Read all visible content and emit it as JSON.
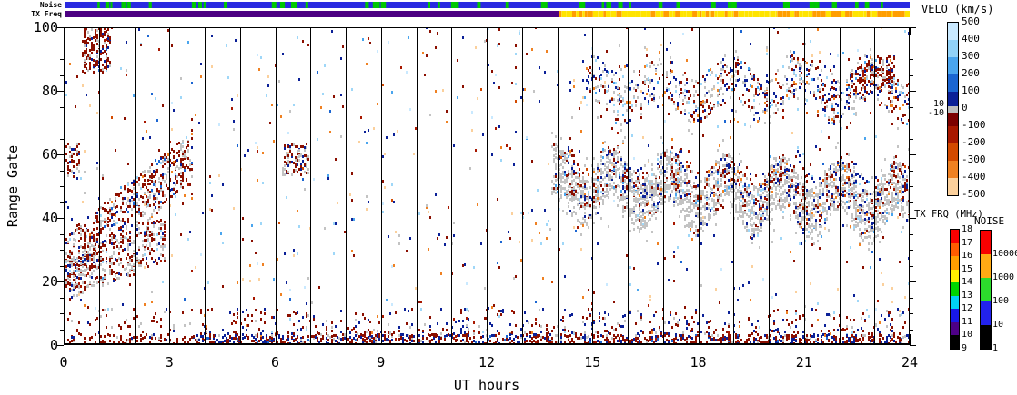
{
  "chart_data": {
    "type": "scatter",
    "description": "SuperDARN radar range-time plot: Doppler velocity vs UT hours and range gate",
    "axes": {
      "xlabel": "UT hours",
      "ylabel": "Range Gate",
      "x_range": [
        0,
        24
      ],
      "y_range": [
        0,
        100
      ],
      "x_major_ticks": [
        0,
        3,
        6,
        9,
        12,
        15,
        18,
        21,
        24
      ],
      "x_minor_step": 1,
      "y_major_ticks": [
        0,
        20,
        40,
        60,
        80,
        100
      ],
      "y_minor_step": 5,
      "hour_gridlines": true
    },
    "strips": {
      "noise": {
        "label": "Noise",
        "bar_color": "#2a2ae0",
        "tick_color": "#00c800",
        "tick_count": 46
      },
      "tx_freq": {
        "label": "TX Freq",
        "solid_color": "#4c0082",
        "transition_hour": 14.05,
        "dash_colors": [
          "#ffe400",
          "#ff9e00"
        ]
      }
    },
    "colorbars": {
      "velo": {
        "title": "VELO (km/s)",
        "right_labels": [
          "500",
          "400",
          "300",
          "200",
          "100",
          "0",
          "-100",
          "-200",
          "-300",
          "-400",
          "-500"
        ],
        "left_labels": [
          "10",
          "-10"
        ],
        "segments": [
          {
            "c": "#c9e9ff",
            "h": 19
          },
          {
            "c": "#91d2f8",
            "h": 19
          },
          {
            "c": "#4aa5ee",
            "h": 19
          },
          {
            "c": "#1b66d2",
            "h": 19
          },
          {
            "c": "#0b2097",
            "h": 15.5
          },
          {
            "c": "#bdbdbd",
            "h": 7
          },
          {
            "c": "#7c0000",
            "h": 15.5
          },
          {
            "c": "#a81800",
            "h": 19
          },
          {
            "c": "#d34a00",
            "h": 19
          },
          {
            "c": "#ef8122",
            "h": 19
          },
          {
            "c": "#fbd09c",
            "h": 19
          }
        ]
      },
      "tx_freq": {
        "title": "TX FRQ (MHz)",
        "labels": [
          "18",
          "17",
          "16",
          "15",
          "14",
          "13",
          "12",
          "11",
          "10",
          "9"
        ],
        "segments": [
          "#f80000",
          "#ff5c00",
          "#ff9e00",
          "#fff000",
          "#00d400",
          "#00d2f4",
          "#1818e8",
          "#4d0086",
          "#000000"
        ]
      },
      "noise": {
        "title": "NOISE",
        "labels": [
          "10000",
          "1000",
          "100",
          "10",
          "1"
        ],
        "segments": [
          "#f80000",
          "#ffaa14",
          "#2cdc2c",
          "#2222ec",
          "#000000"
        ]
      }
    },
    "palette": {
      "paleblue": "#c9e9ff",
      "lightblue": "#9fd7f8",
      "sky": "#4aa5ee",
      "blue": "#1b66d2",
      "navy": "#0b2097",
      "gray": "#c3c3c3",
      "darkred": "#8b0f00",
      "maroon": "#7c0000",
      "brick": "#a81800",
      "orangered": "#d34a00",
      "orange": "#ef8122",
      "peach": "#fbd09c"
    },
    "regions": [
      {
        "name": "background-sparse",
        "t": [
          0,
          24
        ],
        "g": [
          10,
          100
        ],
        "count": 780,
        "colors": {
          "darkred": 20,
          "navy": 18,
          "lightblue": 12,
          "paleblue": 6,
          "sky": 5,
          "blue": 4,
          "orange": 10,
          "peach": 12,
          "gray": 8,
          "brick": 3,
          "orangered": 2
        }
      },
      {
        "name": "bottom-row-dense",
        "t": [
          3.8,
          24
        ],
        "g": [
          0,
          2.5
        ],
        "count": 780,
        "colors": {
          "darkred": 55,
          "navy": 28,
          "gray": 8,
          "blue": 4,
          "brick": 5
        }
      },
      {
        "name": "bottom-band",
        "t": [
          3.8,
          24
        ],
        "g": [
          2.5,
          11
        ],
        "bias": 2.2,
        "count": 620,
        "colors": {
          "darkred": 44,
          "navy": 34,
          "gray": 12,
          "orange": 4,
          "lightblue": 3,
          "brick": 3
        }
      },
      {
        "name": "bottom-left-sparse",
        "t": [
          0,
          3.8
        ],
        "g": [
          0,
          3
        ],
        "count": 90,
        "colors": {
          "darkred": 80,
          "gray": 10,
          "navy": 10
        }
      },
      {
        "name": "low-mid-sparse",
        "t": [
          0,
          3.8
        ],
        "g": [
          3,
          11
        ],
        "count": 55,
        "colors": {
          "darkred": 60,
          "gray": 25,
          "navy": 15
        }
      },
      {
        "name": "ascending-band",
        "t": [
          0,
          3.65
        ],
        "band": {
          "c0": 25,
          "c1": 59,
          "hw": 8.5
        },
        "count": 640,
        "colors": {
          "darkred": 47,
          "gray": 30,
          "navy": 10,
          "brick": 5,
          "blue": 3,
          "orange": 2,
          "lightblue": 3
        }
      },
      {
        "name": "ascending-band-lower",
        "t": [
          0,
          2.9
        ],
        "band": {
          "c0": 20,
          "c1": 33,
          "hw": 7
        },
        "count": 400,
        "colors": {
          "gray": 45,
          "darkred": 40,
          "navy": 8,
          "brick": 4,
          "lightblue": 3
        }
      },
      {
        "name": "top-left-cluster",
        "t": [
          0.55,
          1.35
        ],
        "band": {
          "c0": 92,
          "c1": 93,
          "hw": 7
        },
        "count": 170,
        "colors": {
          "darkred": 70,
          "navy": 11,
          "gray": 13,
          "brick": 3,
          "blue": 3
        }
      },
      {
        "name": "left-small-cluster",
        "t": [
          0,
          0.45
        ],
        "g": [
          52,
          63
        ],
        "count": 55,
        "colors": {
          "darkred": 55,
          "gray": 30,
          "navy": 15
        }
      },
      {
        "name": "mid-cluster",
        "t": [
          6.2,
          6.95
        ],
        "g": [
          53,
          63
        ],
        "count": 105,
        "colors": {
          "darkred": 45,
          "gray": 37,
          "navy": 18
        }
      },
      {
        "name": "right-gray-band",
        "t": [
          13.85,
          24
        ],
        "band": {
          "c0": 50,
          "c1": 44,
          "hw": 8,
          "wiggle_amp": 5,
          "wiggle_freq": 0.62,
          "spread": 6
        },
        "count": 2500,
        "colors": {
          "gray": 84,
          "darkred": 6,
          "navy": 5,
          "lightblue": 2,
          "orange": 1.5,
          "sky": 1.5
        }
      },
      {
        "name": "right-band-scatter",
        "t": [
          14,
          24
        ],
        "band": {
          "c0": 53,
          "c1": 48,
          "hw": 7,
          "wiggle_amp": 4,
          "wiggle_freq": 0.62
        },
        "count": 430,
        "colors": {
          "darkred": 44,
          "navy": 38,
          "brick": 6,
          "orange": 5,
          "sky": 4,
          "orangered": 3
        }
      },
      {
        "name": "upper-right-band",
        "t": [
          14.8,
          24
        ],
        "band": {
          "c0": 80,
          "c1": 80,
          "hw": 7,
          "wiggle_amp": 4,
          "wiggle_freq": 0.5,
          "spread": 6
        },
        "count": 850,
        "colors": {
          "gray": 33,
          "darkred": 27,
          "navy": 23,
          "lightblue": 7,
          "sky": 4,
          "orange": 4,
          "brick": 2
        }
      },
      {
        "name": "upper-right-dense-cluster",
        "t": [
          22.3,
          23.6
        ],
        "band": {
          "c0": 82,
          "c1": 86,
          "hw": 5
        },
        "count": 150,
        "colors": {
          "darkred": 62,
          "navy": 14,
          "gray": 16,
          "brick": 8
        }
      }
    ]
  }
}
